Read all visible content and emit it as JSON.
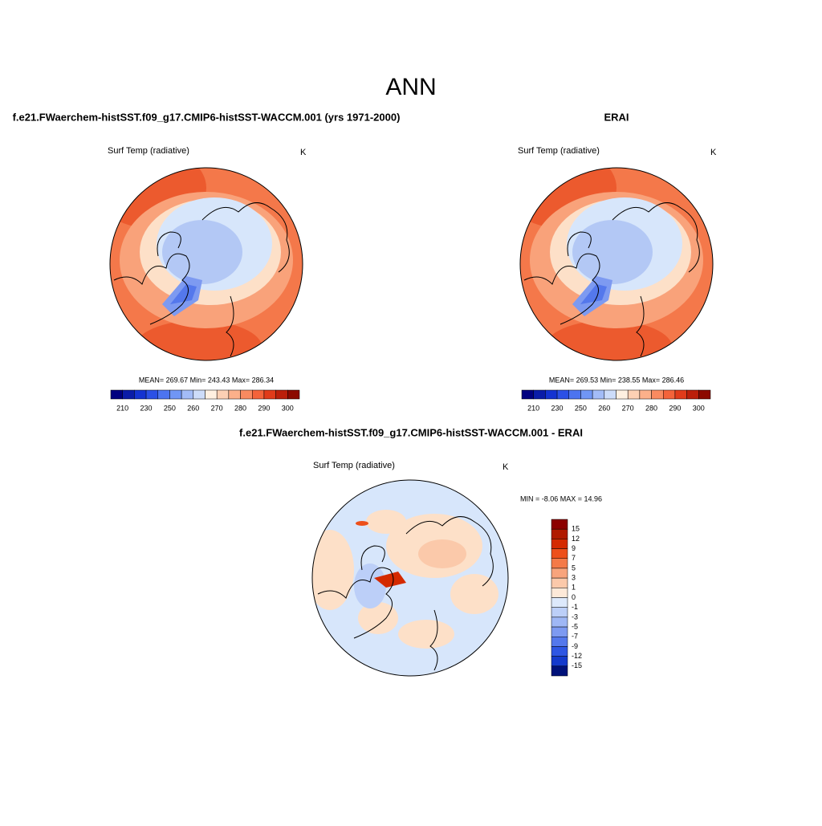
{
  "title": "ANN",
  "panels": [
    {
      "title": "f.e21.FWaerchem-histSST.f09_g17.CMIP6-histSST-WACCM.001 (yrs 1971-2000)",
      "variable": "Surf Temp (radiative)",
      "units": "K",
      "stats": "MEAN= 269.67  Min= 243.43  Max= 286.34",
      "colorbar": {
        "labels": [
          "210",
          "230",
          "250",
          "260",
          "270",
          "280",
          "290",
          "300"
        ],
        "colors": [
          "#000080",
          "#0a1ca8",
          "#1433d1",
          "#2b50e6",
          "#4c74f0",
          "#7096f5",
          "#a3bcf7",
          "#cddcf9",
          "#fff0e1",
          "#fdd0b4",
          "#fcb08a",
          "#f98a60",
          "#f4633a",
          "#e13b1a",
          "#bb1f0a",
          "#8c0a00"
        ]
      }
    },
    {
      "title": "ERAI",
      "variable": "Surf Temp (radiative)",
      "units": "K",
      "stats": "MEAN= 269.53  Min= 238.55  Max= 286.46",
      "colorbar": {
        "labels": [
          "210",
          "230",
          "250",
          "260",
          "270",
          "280",
          "290",
          "300"
        ],
        "colors": [
          "#000080",
          "#0a1ca8",
          "#1433d1",
          "#2b50e6",
          "#4c74f0",
          "#7096f5",
          "#a3bcf7",
          "#cddcf9",
          "#fff0e1",
          "#fdd0b4",
          "#fcb08a",
          "#f98a60",
          "#f4633a",
          "#e13b1a",
          "#bb1f0a",
          "#8c0a00"
        ]
      }
    }
  ],
  "difference": {
    "title": "f.e21.FWaerchem-histSST.f09_g17.CMIP6-histSST-WACCM.001 - ERAI",
    "variable": "Surf Temp (radiative)",
    "units": "K",
    "stats": "MIN =  -8.06 MAX =  14.96",
    "colorbar": {
      "labels": [
        "15",
        "12",
        "9",
        "7",
        "5",
        "3",
        "1",
        "0",
        "-1",
        "-3",
        "-5",
        "-7",
        "-9",
        "-12",
        "-15"
      ],
      "colors": [
        "#8c0000",
        "#b01a00",
        "#d42a00",
        "#ed4f1a",
        "#f47a48",
        "#f8a47c",
        "#fbc9aa",
        "#fde9d8",
        "#dde9fb",
        "#bccff8",
        "#9fb7f5",
        "#7d9af1",
        "#5478ec",
        "#2e56e3",
        "#143acc",
        "#00127a"
      ]
    }
  }
}
